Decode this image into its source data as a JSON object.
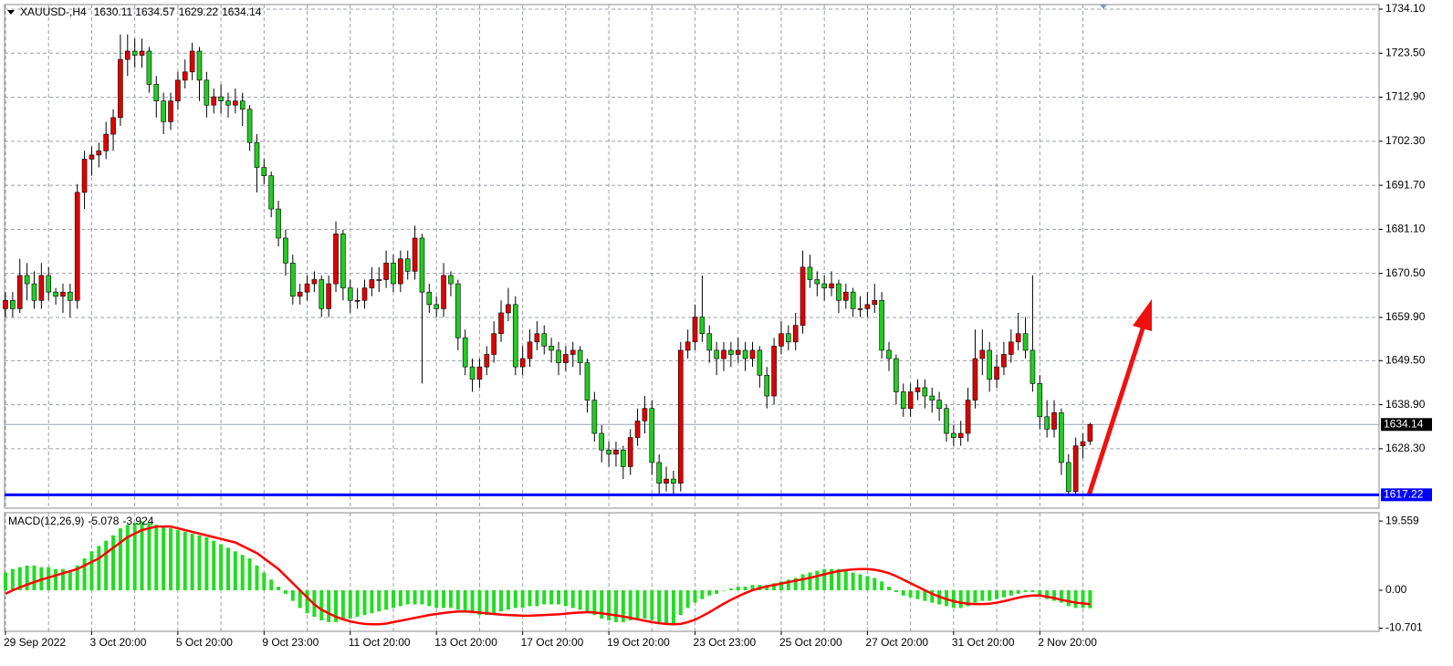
{
  "chart_data": {
    "type": "candlestick",
    "title": "XAUUSD-,H4",
    "categories": [
      "29 Sep 2022",
      null,
      null,
      null,
      null,
      null,
      null,
      null,
      null,
      null,
      null,
      null,
      "3 Oct 20:00",
      null,
      null,
      null,
      null,
      null,
      null,
      null,
      null,
      null,
      null,
      null,
      "5 Oct 20:00",
      null,
      null,
      null,
      null,
      null,
      null,
      null,
      null,
      null,
      null,
      null,
      "9 Oct 23:00",
      null,
      null,
      null,
      null,
      null,
      null,
      null,
      null,
      null,
      null,
      null,
      "11 Oct 20:00",
      null,
      null,
      null,
      null,
      null,
      null,
      null,
      null,
      null,
      null,
      null,
      "13 Oct 20:00",
      null,
      null,
      null,
      null,
      null,
      null,
      null,
      null,
      null,
      null,
      null,
      "17 Oct 20:00",
      null,
      null,
      null,
      null,
      null,
      null,
      null,
      null,
      null,
      null,
      null,
      "19 Oct 20:00",
      null,
      null,
      null,
      null,
      null,
      null,
      null,
      null,
      null,
      null,
      null,
      "23 Oct 23:00",
      null,
      null,
      null,
      null,
      null,
      null,
      null,
      null,
      null,
      null,
      null,
      "25 Oct 20:00",
      null,
      null,
      null,
      null,
      null,
      null,
      null,
      null,
      null,
      null,
      null,
      "27 Oct 20:00",
      null,
      null,
      null,
      null,
      null,
      null,
      null,
      null,
      null,
      null,
      null,
      "31 Oct 20:00",
      null,
      null,
      null,
      null,
      null,
      null,
      null,
      null,
      null,
      null,
      null,
      "2 Nov 20:00",
      null,
      null,
      null,
      null,
      null,
      null,
      null
    ],
    "ohlc": [
      [
        1662,
        1666,
        1660,
        1664
      ],
      [
        1664,
        1666,
        1660,
        1662
      ],
      [
        1662,
        1674,
        1661,
        1670
      ],
      [
        1670,
        1673,
        1664,
        1668
      ],
      [
        1668,
        1671,
        1662,
        1664
      ],
      [
        1664,
        1673,
        1662,
        1670
      ],
      [
        1670,
        1672,
        1664,
        1666
      ],
      [
        1666,
        1667,
        1663,
        1665
      ],
      [
        1665,
        1668,
        1661,
        1666
      ],
      [
        1666,
        1668,
        1660,
        1664
      ],
      [
        1664,
        1692,
        1662,
        1690
      ],
      [
        1690,
        1700,
        1686,
        1698
      ],
      [
        1698,
        1701,
        1694,
        1699
      ],
      [
        1699,
        1702,
        1696,
        1700
      ],
      [
        1700,
        1707,
        1698,
        1704
      ],
      [
        1704,
        1710,
        1700,
        1708
      ],
      [
        1708,
        1728,
        1706,
        1722
      ],
      [
        1722,
        1728,
        1718,
        1724
      ],
      [
        1724,
        1727,
        1720,
        1723
      ],
      [
        1723,
        1727,
        1720,
        1724
      ],
      [
        1724,
        1725,
        1714,
        1716
      ],
      [
        1716,
        1718,
        1708,
        1712
      ],
      [
        1712,
        1714,
        1704,
        1707
      ],
      [
        1707,
        1714,
        1705,
        1712
      ],
      [
        1712,
        1719,
        1710,
        1717
      ],
      [
        1717,
        1722,
        1715,
        1719
      ],
      [
        1719,
        1726,
        1717,
        1724
      ],
      [
        1724,
        1725,
        1712,
        1717
      ],
      [
        1717,
        1719,
        1708,
        1711
      ],
      [
        1711,
        1715,
        1709,
        1713
      ],
      [
        1713,
        1716,
        1709,
        1712
      ],
      [
        1712,
        1714,
        1708,
        1711
      ],
      [
        1711,
        1715,
        1709,
        1712
      ],
      [
        1712,
        1714,
        1706,
        1710
      ],
      [
        1710,
        1711,
        1700,
        1702
      ],
      [
        1702,
        1704,
        1690,
        1696
      ],
      [
        1696,
        1698,
        1692,
        1694
      ],
      [
        1694,
        1695,
        1684,
        1686
      ],
      [
        1686,
        1688,
        1677,
        1679
      ],
      [
        1679,
        1681,
        1670,
        1673
      ],
      [
        1673,
        1675,
        1663,
        1665
      ],
      [
        1665,
        1668,
        1663,
        1666
      ],
      [
        1666,
        1670,
        1664,
        1668
      ],
      [
        1668,
        1671,
        1666,
        1669
      ],
      [
        1669,
        1670,
        1660,
        1662
      ],
      [
        1662,
        1670,
        1660,
        1668
      ],
      [
        1668,
        1683,
        1666,
        1680
      ],
      [
        1680,
        1681,
        1664,
        1667
      ],
      [
        1667,
        1669,
        1661,
        1664
      ],
      [
        1664,
        1667,
        1662,
        1664
      ],
      [
        1664,
        1669,
        1662,
        1667
      ],
      [
        1667,
        1672,
        1665,
        1669
      ],
      [
        1669,
        1672,
        1666,
        1669
      ],
      [
        1669,
        1676,
        1667,
        1673
      ],
      [
        1673,
        1675,
        1666,
        1668
      ],
      [
        1668,
        1676,
        1666,
        1674
      ],
      [
        1674,
        1676,
        1669,
        1671
      ],
      [
        1671,
        1682,
        1669,
        1679
      ],
      [
        1679,
        1680,
        1644,
        1666
      ],
      [
        1666,
        1668,
        1661,
        1663
      ],
      [
        1663,
        1665,
        1660,
        1662
      ],
      [
        1662,
        1673,
        1660,
        1670
      ],
      [
        1670,
        1671,
        1665,
        1668
      ],
      [
        1668,
        1669,
        1652,
        1655
      ],
      [
        1655,
        1657,
        1646,
        1648
      ],
      [
        1648,
        1650,
        1642,
        1645
      ],
      [
        1645,
        1650,
        1643,
        1648
      ],
      [
        1648,
        1653,
        1646,
        1651
      ],
      [
        1651,
        1659,
        1649,
        1656
      ],
      [
        1656,
        1664,
        1654,
        1661
      ],
      [
        1661,
        1667,
        1659,
        1663
      ],
      [
        1663,
        1665,
        1646,
        1648
      ],
      [
        1648,
        1653,
        1646,
        1650
      ],
      [
        1650,
        1657,
        1648,
        1654
      ],
      [
        1654,
        1659,
        1652,
        1656
      ],
      [
        1656,
        1658,
        1651,
        1653
      ],
      [
        1653,
        1655,
        1649,
        1652
      ],
      [
        1652,
        1654,
        1646,
        1649
      ],
      [
        1649,
        1653,
        1647,
        1651
      ],
      [
        1651,
        1654,
        1648,
        1652
      ],
      [
        1652,
        1653,
        1646,
        1649
      ],
      [
        1649,
        1650,
        1637,
        1640
      ],
      [
        1640,
        1642,
        1630,
        1632
      ],
      [
        1632,
        1634,
        1625,
        1628
      ],
      [
        1628,
        1630,
        1624,
        1627
      ],
      [
        1627,
        1630,
        1624,
        1628
      ],
      [
        1628,
        1629,
        1621,
        1624
      ],
      [
        1624,
        1633,
        1622,
        1631
      ],
      [
        1631,
        1638,
        1629,
        1635
      ],
      [
        1635,
        1641,
        1632,
        1638
      ],
      [
        1638,
        1640,
        1622,
        1625
      ],
      [
        1625,
        1627,
        1617,
        1620
      ],
      [
        1620,
        1624,
        1618,
        1621
      ],
      [
        1621,
        1623,
        1617,
        1620
      ],
      [
        1620,
        1654,
        1618,
        1652
      ],
      [
        1652,
        1657,
        1650,
        1654
      ],
      [
        1654,
        1663,
        1652,
        1660
      ],
      [
        1660,
        1670,
        1654,
        1656
      ],
      [
        1656,
        1658,
        1649,
        1652
      ],
      [
        1652,
        1654,
        1646,
        1650
      ],
      [
        1650,
        1654,
        1647,
        1652
      ],
      [
        1652,
        1654,
        1648,
        1651
      ],
      [
        1651,
        1655,
        1649,
        1652
      ],
      [
        1652,
        1654,
        1647,
        1650
      ],
      [
        1650,
        1654,
        1648,
        1652
      ],
      [
        1652,
        1653,
        1643,
        1646
      ],
      [
        1646,
        1648,
        1638,
        1641
      ],
      [
        1641,
        1655,
        1639,
        1653
      ],
      [
        1653,
        1659,
        1651,
        1656
      ],
      [
        1656,
        1658,
        1652,
        1654
      ],
      [
        1654,
        1661,
        1652,
        1658
      ],
      [
        1658,
        1676,
        1656,
        1672
      ],
      [
        1672,
        1675,
        1667,
        1669
      ],
      [
        1669,
        1671,
        1665,
        1668
      ],
      [
        1668,
        1670,
        1664,
        1667
      ],
      [
        1667,
        1671,
        1665,
        1668
      ],
      [
        1668,
        1669,
        1661,
        1664
      ],
      [
        1664,
        1668,
        1662,
        1666
      ],
      [
        1666,
        1667,
        1660,
        1662
      ],
      [
        1662,
        1665,
        1660,
        1662
      ],
      [
        1662,
        1666,
        1660,
        1663
      ],
      [
        1663,
        1668,
        1661,
        1664
      ],
      [
        1664,
        1666,
        1650,
        1652
      ],
      [
        1652,
        1654,
        1647,
        1650
      ],
      [
        1650,
        1651,
        1639,
        1642
      ],
      [
        1642,
        1644,
        1636,
        1638
      ],
      [
        1638,
        1644,
        1636,
        1642
      ],
      [
        1642,
        1645,
        1640,
        1643
      ],
      [
        1643,
        1645,
        1638,
        1641
      ],
      [
        1641,
        1643,
        1637,
        1640
      ],
      [
        1640,
        1642,
        1635,
        1638
      ],
      [
        1638,
        1639,
        1630,
        1632
      ],
      [
        1632,
        1634,
        1629,
        1631
      ],
      [
        1631,
        1635,
        1629,
        1632
      ],
      [
        1632,
        1643,
        1630,
        1640
      ],
      [
        1640,
        1657,
        1638,
        1650
      ],
      [
        1650,
        1657,
        1646,
        1652
      ],
      [
        1652,
        1654,
        1642,
        1645
      ],
      [
        1645,
        1651,
        1643,
        1648
      ],
      [
        1648,
        1654,
        1646,
        1651
      ],
      [
        1651,
        1657,
        1649,
        1654
      ],
      [
        1654,
        1661,
        1652,
        1656
      ],
      [
        1656,
        1660,
        1650,
        1652
      ],
      [
        1652,
        1670,
        1642,
        1644
      ],
      [
        1644,
        1646,
        1633,
        1636
      ],
      [
        1636,
        1640,
        1631,
        1633
      ],
      [
        1633,
        1640,
        1631,
        1637
      ],
      [
        1637,
        1638,
        1622,
        1625
      ],
      [
        1625,
        1627,
        1617,
        1618
      ],
      [
        1618,
        1631,
        1617,
        1629
      ],
      [
        1629,
        1632,
        1626,
        1630
      ],
      [
        1630.11,
        1634.57,
        1629.22,
        1634.14
      ]
    ],
    "up_color": "#e00000",
    "down_color": "#22cc22",
    "ylim": [
      1614,
      1735.2
    ],
    "yticks": [
      {
        "value": 1734.1,
        "label": "1734.10"
      },
      {
        "value": 1723.5,
        "label": "1723.50"
      },
      {
        "value": 1712.9,
        "label": "1712.90"
      },
      {
        "value": 1702.3,
        "label": "1702.30"
      },
      {
        "value": 1691.7,
        "label": "1691.70"
      },
      {
        "value": 1681.1,
        "label": "1681.10"
      },
      {
        "value": 1670.5,
        "label": "1670.50"
      },
      {
        "value": 1659.9,
        "label": "1659.90"
      },
      {
        "value": 1649.5,
        "label": "1649.50"
      },
      {
        "value": 1638.9,
        "label": "1638.90"
      },
      {
        "value": 1628.3,
        "label": "1628.30"
      }
    ],
    "grid": true,
    "hline": {
      "value": 1617.22,
      "color": "#0000ff"
    },
    "indicator": {
      "type": "macd",
      "name": "MACD(12,26,9)",
      "histogram": {
        "color": "#22dd22",
        "values": [
          5,
          6,
          6.5,
          7,
          7,
          6.5,
          6.5,
          6,
          6,
          5.5,
          7,
          9,
          11,
          12.5,
          14,
          15.5,
          17.5,
          18.5,
          19,
          19.5,
          19,
          18.5,
          18,
          17.5,
          17,
          16.5,
          16,
          15.5,
          15,
          14,
          13,
          12,
          11,
          10,
          9,
          7,
          5,
          3,
          1,
          -1,
          -3,
          -5,
          -6.5,
          -7.5,
          -8.5,
          -9,
          -9,
          -8.5,
          -8,
          -7.5,
          -7,
          -6.5,
          -6,
          -5.5,
          -5,
          -4.5,
          -4,
          -4,
          -4,
          -4.5,
          -5,
          -5,
          -5,
          -5.5,
          -6,
          -6.5,
          -7,
          -7,
          -6.5,
          -6,
          -5.5,
          -5,
          -5,
          -4.5,
          -4.5,
          -4,
          -4,
          -4,
          -4.5,
          -5,
          -5.5,
          -6,
          -7,
          -8,
          -8.5,
          -9,
          -9,
          -8.5,
          -8,
          -8,
          -8.5,
          -9,
          -9.5,
          -9.5,
          -7,
          -5,
          -3.5,
          -2.5,
          -1.5,
          -1,
          0,
          0.5,
          1,
          1,
          1.5,
          1.5,
          1.5,
          2,
          2.5,
          3,
          3.5,
          4.5,
          5,
          5.5,
          6,
          6,
          6,
          5.5,
          5,
          4.5,
          4,
          3.5,
          2.5,
          1,
          -0.5,
          -1.5,
          -2,
          -2.5,
          -3,
          -3.5,
          -4,
          -4.5,
          -5,
          -5,
          -4.5,
          -3.5,
          -3,
          -3,
          -2.5,
          -2,
          -1.5,
          -1,
          -0.5,
          -0.5,
          -1.5,
          -2.5,
          -3,
          -3.5,
          -4.5,
          -5,
          -5,
          -5.078
        ]
      },
      "signal": {
        "color": "#ff0000",
        "values": [
          -1,
          0,
          0.8,
          1.6,
          2.3,
          3,
          3.6,
          4.2,
          4.8,
          5.4,
          6,
          7,
          8,
          9,
          10.5,
          12,
          13.5,
          15,
          16,
          17,
          17.5,
          18,
          18,
          18,
          17.5,
          17,
          16.5,
          16,
          15.5,
          15,
          14.5,
          14,
          13.5,
          12.5,
          11.5,
          10.5,
          9,
          7.5,
          6,
          4,
          2,
          0,
          -2,
          -4,
          -5.5,
          -6.5,
          -7.5,
          -8.2,
          -8.8,
          -9.2,
          -9.5,
          -9.6,
          -9.6,
          -9.4,
          -9,
          -8.6,
          -8.2,
          -7.8,
          -7.4,
          -7,
          -6.7,
          -6.4,
          -6.2,
          -6,
          -6,
          -6.1,
          -6.3,
          -6.5,
          -6.7,
          -6.9,
          -7,
          -7.1,
          -7.2,
          -7.2,
          -7.1,
          -7,
          -6.9,
          -6.8,
          -6.6,
          -6.4,
          -6.3,
          -6.2,
          -6.3,
          -6.5,
          -6.8,
          -7.1,
          -7.4,
          -7.8,
          -8.2,
          -8.6,
          -9,
          -9.3,
          -9.5,
          -9.6,
          -9.5,
          -9,
          -8.3,
          -7.3,
          -6.2,
          -5,
          -3.8,
          -2.7,
          -1.7,
          -0.8,
          0,
          0.6,
          1.1,
          1.5,
          1.9,
          2.3,
          2.7,
          3.1,
          3.5,
          4,
          4.5,
          5,
          5.4,
          5.7,
          5.9,
          6,
          6,
          5.8,
          5.4,
          4.8,
          4,
          3,
          2,
          1,
          0,
          -1,
          -1.8,
          -2.5,
          -3.1,
          -3.5,
          -3.8,
          -3.9,
          -3.9,
          -3.8,
          -3.5,
          -3.1,
          -2.6,
          -2.1,
          -1.7,
          -1.5,
          -1.5,
          -1.8,
          -2.2,
          -2.7,
          -3.1,
          -3.5,
          -3.7,
          -3.924
        ]
      },
      "ylim": [
        -11.6,
        21.9
      ],
      "yticks": [
        19.559,
        {
          "value": 0,
          "label": "0.00"
        },
        -10.701
      ]
    }
  }
}
